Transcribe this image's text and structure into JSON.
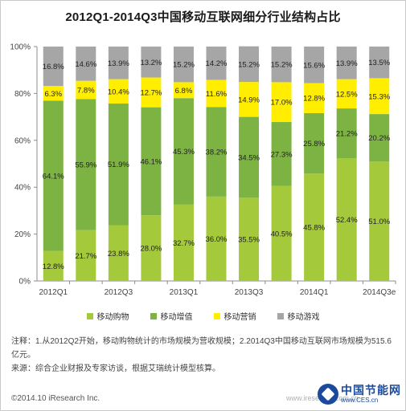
{
  "chart_data": {
    "type": "bar",
    "stacked": true,
    "title": "2012Q1-2014Q3中国移动互联网细分行业结构占比",
    "categories": [
      "2012Q1",
      "2012Q2",
      "2012Q3",
      "2012Q4",
      "2013Q1",
      "2013Q2",
      "2013Q3",
      "2013Q4",
      "2014Q1",
      "2014Q2",
      "2014Q3e"
    ],
    "x_tick_labels": [
      "2012Q1",
      "",
      "2012Q3",
      "",
      "2013Q1",
      "",
      "2013Q3",
      "",
      "2014Q1",
      "",
      "2014Q3e"
    ],
    "y_tick_labels": [
      "0%",
      "20%",
      "40%",
      "60%",
      "80%",
      "100%"
    ],
    "ylim": [
      0,
      100
    ],
    "grid": false,
    "legend_position": "bottom",
    "series": [
      {
        "name": "移动购物",
        "color": "#a4c93a",
        "values": [
          12.8,
          21.7,
          23.8,
          28.0,
          32.7,
          36.0,
          35.5,
          40.5,
          45.8,
          52.4,
          51.0
        ]
      },
      {
        "name": "移动增值",
        "color": "#7cb342",
        "values": [
          64.1,
          55.9,
          51.9,
          46.1,
          45.3,
          38.2,
          34.5,
          27.3,
          25.8,
          21.2,
          20.2
        ]
      },
      {
        "name": "移动营销",
        "color": "#ffee00",
        "values": [
          6.3,
          7.8,
          10.4,
          12.7,
          6.8,
          11.6,
          14.9,
          17.0,
          12.8,
          12.5,
          15.3
        ]
      },
      {
        "name": "移动游戏",
        "color": "#a6a6a6",
        "values": [
          16.8,
          14.6,
          13.9,
          13.2,
          15.2,
          14.2,
          15.2,
          15.2,
          15.6,
          13.9,
          13.5
        ]
      }
    ]
  },
  "notes": {
    "line1": "注释：1.从2012Q2开始，移动购物统计的市场规模为营收规模；2.2014Q3中国移动互联网市场规模为515.6亿元。",
    "line2": "来源：综合企业财报及专家访谈，根据艾瑞统计模型核算。"
  },
  "footer": {
    "copyright": "©2014.10 iResearch Inc.",
    "watermark_url": "www.iresearch.com.cn"
  },
  "logo": {
    "name": "中国节能网",
    "url": "www.CES.cn"
  }
}
